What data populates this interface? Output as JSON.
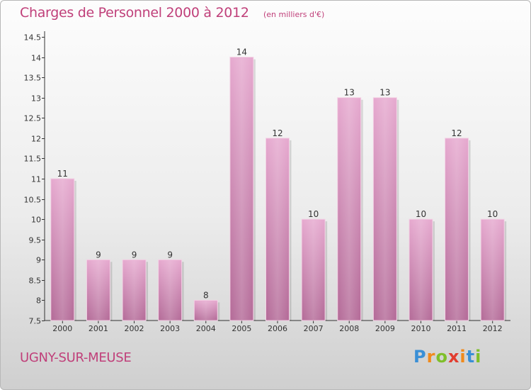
{
  "chart_data": {
    "type": "bar",
    "title": "Charges de Personnel 2000 à 2012",
    "subtitle": "(en milliers d'€)",
    "categories": [
      "2000",
      "2001",
      "2002",
      "2003",
      "2004",
      "2005",
      "2006",
      "2007",
      "2008",
      "2009",
      "2010",
      "2011",
      "2012"
    ],
    "values": [
      11,
      9,
      9,
      9,
      8,
      14,
      12,
      10,
      13,
      13,
      10,
      12,
      10
    ],
    "value_labels": [
      "11",
      "9",
      "9",
      "9",
      "8",
      "14",
      "12",
      "10",
      "13",
      "13",
      "10",
      "12",
      "10"
    ],
    "ylim": [
      7.5,
      14.5
    ],
    "yticks": [
      7.5,
      8,
      8.5,
      9,
      9.5,
      10,
      10.5,
      11,
      11.5,
      12,
      12.5,
      13,
      13.5,
      14,
      14.5
    ],
    "ytick_labels": [
      "7.5",
      "8",
      "8.5",
      "9",
      "9.5",
      "10",
      "10.5",
      "11",
      "11.5",
      "12",
      "12.5",
      "13",
      "13.5",
      "14",
      "14.5"
    ],
    "xlabel": "",
    "ylabel": "",
    "bar_color": "#d98cb8"
  },
  "footer": {
    "town": "UGNY-SUR-MEUSE",
    "brand_letters": [
      "P",
      "r",
      "o",
      "x",
      "i",
      "t",
      "i"
    ],
    "brand_colors": [
      "#3a8fd6",
      "#f08a1c",
      "#7fbf2a",
      "#e23d2f",
      "#f08a1c",
      "#3a8fd6",
      "#7fbf2a"
    ]
  }
}
